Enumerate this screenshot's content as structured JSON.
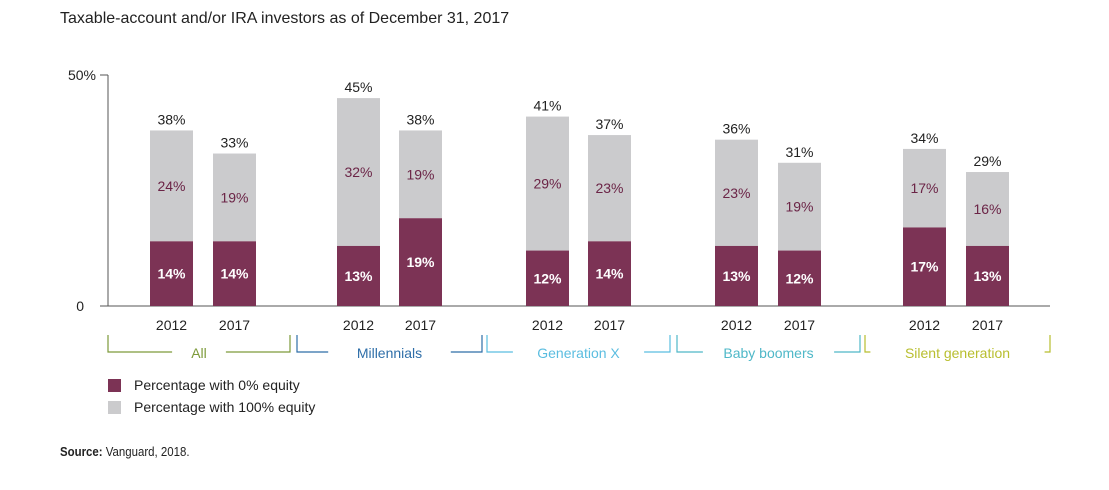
{
  "chart_data": {
    "type": "bar",
    "stacked": true,
    "title": "Taxable-account and/or IRA investors as of December 31, 2017",
    "ylim": [
      0,
      50
    ],
    "yticks": [
      "0",
      "50%"
    ],
    "grid": false,
    "legend_position": "bottom-left",
    "groups": [
      {
        "name": "All",
        "color": "#7d9a3a",
        "categories": [
          "2012",
          "2017"
        ],
        "zero_equity": [
          14,
          14
        ],
        "full_equity": [
          24,
          19
        ],
        "totals": [
          38,
          33
        ]
      },
      {
        "name": "Millennials",
        "color": "#2e6ea8",
        "categories": [
          "2012",
          "2017"
        ],
        "zero_equity": [
          13,
          19
        ],
        "full_equity": [
          32,
          19
        ],
        "totals": [
          45,
          38
        ]
      },
      {
        "name": "Generation X",
        "color": "#5bbde0",
        "categories": [
          "2012",
          "2017"
        ],
        "zero_equity": [
          12,
          14
        ],
        "full_equity": [
          29,
          23
        ],
        "totals": [
          41,
          37
        ]
      },
      {
        "name": "Baby boomers",
        "color": "#4fb8c8",
        "categories": [
          "2012",
          "2017"
        ],
        "zero_equity": [
          13,
          12
        ],
        "full_equity": [
          23,
          19
        ],
        "totals": [
          36,
          31
        ]
      },
      {
        "name": "Silent generation",
        "color": "#b8be2e",
        "categories": [
          "2012",
          "2017"
        ],
        "zero_equity": [
          17,
          13
        ],
        "full_equity": [
          17,
          16
        ],
        "totals": [
          34,
          29
        ]
      }
    ],
    "series": [
      {
        "name": "Percentage with 0% equity",
        "color": "#7c3355"
      },
      {
        "name": "Percentage with 100% equity",
        "color": "#cbcbcd"
      }
    ]
  },
  "source": {
    "label": "Source:",
    "text": " Vanguard, 2018."
  }
}
